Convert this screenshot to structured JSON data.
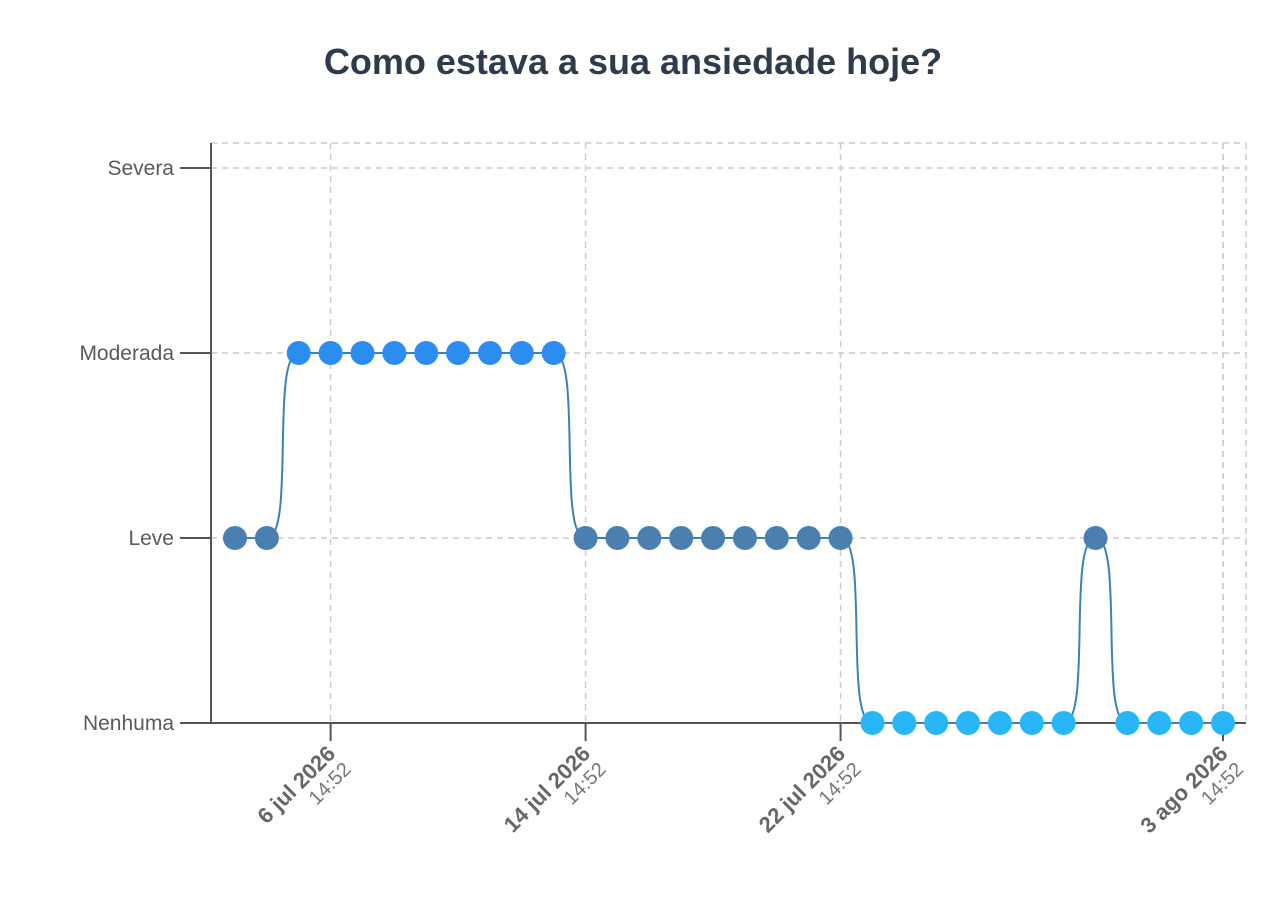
{
  "chart_data": {
    "type": "line",
    "title": "Como estava a sua ansiedade hoje?",
    "xlabel": "",
    "ylabel": "",
    "y_categories": [
      "Nenhuma",
      "Leve",
      "Moderada",
      "Severa"
    ],
    "x_ticks": [
      {
        "date": "6 jul 2026",
        "time": "14:52",
        "x": "2026-07-06"
      },
      {
        "date": "14 jul 2026",
        "time": "14:52",
        "x": "2026-07-14"
      },
      {
        "date": "22 jul 2026",
        "time": "14:52",
        "x": "2026-07-22"
      },
      {
        "date": "3 ago 2026",
        "time": "14:52",
        "x": "2026-08-03"
      }
    ],
    "xlim": [
      "2026-07-03",
      "2026-08-07"
    ],
    "grid": true,
    "series": [
      {
        "x": [
          "2026-07-03",
          "2026-07-04",
          "2026-07-05",
          "2026-07-06",
          "2026-07-07",
          "2026-07-08",
          "2026-07-09",
          "2026-07-10",
          "2026-07-11",
          "2026-07-12",
          "2026-07-13",
          "2026-07-14",
          "2026-07-15",
          "2026-07-16",
          "2026-07-17",
          "2026-07-18",
          "2026-07-19",
          "2026-07-20",
          "2026-07-21",
          "2026-07-22",
          "2026-07-23",
          "2026-07-24",
          "2026-07-25",
          "2026-07-26",
          "2026-07-27",
          "2026-07-28",
          "2026-07-29",
          "2026-07-30",
          "2026-07-31",
          "2026-08-01",
          "2026-08-02",
          "2026-08-03"
        ],
        "values": [
          "Leve",
          "Leve",
          "Moderada",
          "Moderada",
          "Moderada",
          "Moderada",
          "Moderada",
          "Moderada",
          "Moderada",
          "Moderada",
          "Moderada",
          "Leve",
          "Leve",
          "Leve",
          "Leve",
          "Leve",
          "Leve",
          "Leve",
          "Leve",
          "Leve",
          "Nenhuma",
          "Nenhuma",
          "Nenhuma",
          "Nenhuma",
          "Nenhuma",
          "Nenhuma",
          "Nenhuma",
          "Leve",
          "Nenhuma",
          "Nenhuma",
          "Nenhuma",
          "Nenhuma"
        ]
      }
    ],
    "colors": {
      "line": "#3a82b8",
      "Nenhuma": "#29b6f6",
      "Leve": "#4a7fb0",
      "Moderada": "#2d8cf0",
      "Severa": "#1f5fa8",
      "grid": "#cccccc",
      "axis": "#555555"
    }
  }
}
